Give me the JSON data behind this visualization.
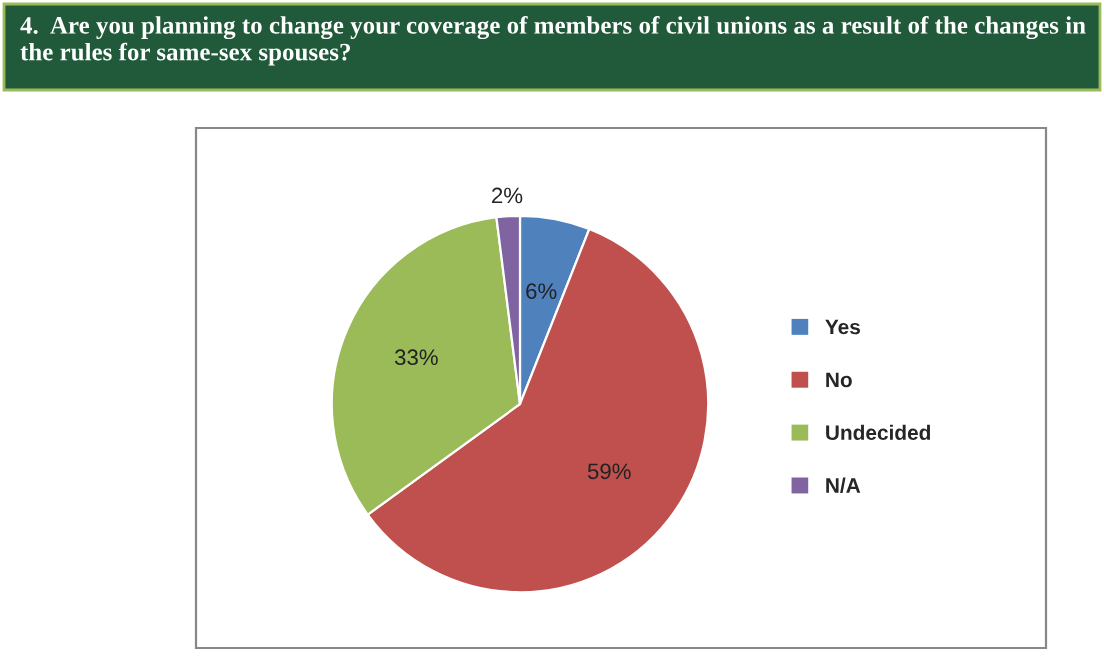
{
  "chart_data": {
    "type": "pie",
    "title": "4.  Are you planning to change your coverage of members of civil unions as a result of the changes in the rules for same-sex spouses?",
    "categories": [
      "Yes",
      "No",
      "Undecided",
      "N/A"
    ],
    "values": [
      6,
      59,
      33,
      2
    ],
    "value_labels": [
      "6%",
      "59%",
      "33%",
      "2%"
    ],
    "colors": [
      "#4f81bd",
      "#c0504d",
      "#9bbb59",
      "#8064a2"
    ],
    "legend": "right"
  }
}
